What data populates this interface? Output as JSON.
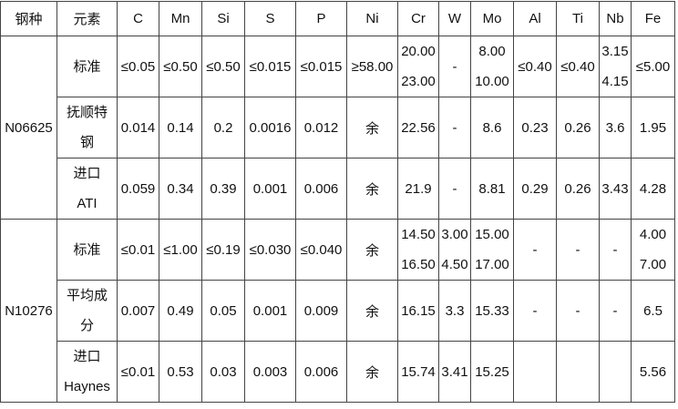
{
  "table": {
    "header": [
      "钢种",
      "元素",
      "C",
      "Mn",
      "Si",
      "S",
      "P",
      "Ni",
      "Cr",
      "W",
      "Mo",
      "Al",
      "Ti",
      "Nb",
      "Fe"
    ],
    "groups": [
      {
        "grade": "N06625",
        "rows": [
          {
            "element": [
              "标准"
            ],
            "values": [
              "≤0.05",
              "≤0.50",
              "≤0.50",
              "≤0.015",
              "≤0.015",
              "≥58.00",
              [
                "20.00",
                "23.00"
              ],
              "-",
              [
                "8.00",
                "10.00"
              ],
              "≤0.40",
              "≤0.40",
              [
                "3.15",
                "4.15"
              ],
              "≤5.00"
            ]
          },
          {
            "element": [
              "抚顺特",
              "钢"
            ],
            "values": [
              "0.014",
              "0.14",
              "0.2",
              "0.0016",
              "0.012",
              "余",
              "22.56",
              "-",
              "8.6",
              "0.23",
              "0.26",
              "3.6",
              "1.95"
            ]
          },
          {
            "element": [
              "进口",
              "ATI"
            ],
            "values": [
              "0.059",
              "0.34",
              "0.39",
              "0.001",
              "0.006",
              "余",
              "21.9",
              "-",
              "8.81",
              "0.29",
              "0.26",
              "3.43",
              "4.28"
            ]
          }
        ]
      },
      {
        "grade": "N10276",
        "rows": [
          {
            "element": [
              "标准"
            ],
            "values": [
              "≤0.01",
              "≤1.00",
              "≤0.19",
              "≤0.030",
              "≤0.040",
              "余",
              [
                "14.50",
                "16.50"
              ],
              [
                "3.00",
                "4.50"
              ],
              [
                "15.00",
                "17.00"
              ],
              "-",
              "-",
              "-",
              [
                "4.00",
                "7.00"
              ]
            ]
          },
          {
            "element": [
              "平均成",
              "分"
            ],
            "values": [
              "0.007",
              "0.49",
              "0.05",
              "0.001",
              "0.009",
              "余",
              "16.15",
              "3.3",
              "15.33",
              "-",
              "-",
              "-",
              "6.5"
            ]
          },
          {
            "element": [
              "进口",
              "Haynes"
            ],
            "values": [
              "≤0.01",
              "0.53",
              "0.03",
              "0.003",
              "0.006",
              "余",
              "15.74",
              "3.41",
              "15.25",
              null,
              null,
              null,
              "5.56"
            ]
          }
        ]
      }
    ]
  }
}
